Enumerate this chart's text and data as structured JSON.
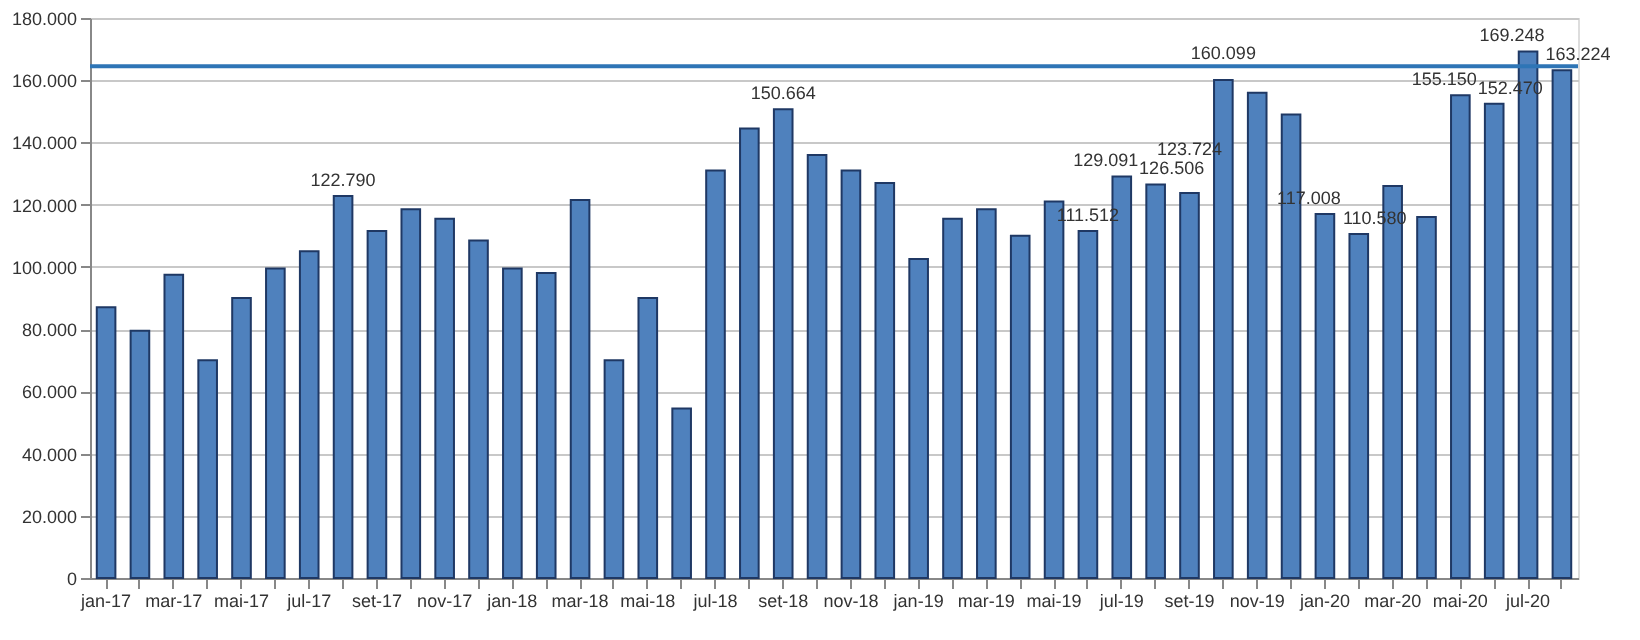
{
  "chart_data": {
    "type": "bar",
    "categories": [
      "jan-17",
      null,
      "mar-17",
      null,
      "mai-17",
      null,
      "jul-17",
      null,
      "set-17",
      null,
      "nov-17",
      null,
      "jan-18",
      null,
      "mar-18",
      null,
      "mai-18",
      null,
      "jul-18",
      null,
      "set-18",
      null,
      "nov-18",
      null,
      "jan-19",
      null,
      "mar-19",
      null,
      "mai-19",
      null,
      "jul-19",
      null,
      "set-19",
      null,
      "nov-19",
      null,
      "jan-20",
      null,
      "mar-20",
      null,
      "mai-20",
      null,
      "jul-20",
      null
    ],
    "values": [
      87000,
      79500,
      97500,
      70000,
      90000,
      99500,
      105000,
      122790,
      111500,
      118500,
      115500,
      108500,
      99500,
      98000,
      121500,
      70000,
      90000,
      54500,
      131000,
      144500,
      150664,
      136000,
      131000,
      127000,
      102500,
      115500,
      118500,
      110000,
      121000,
      111512,
      129091,
      126506,
      123724,
      160099,
      156000,
      149000,
      117008,
      110580,
      126000,
      116000,
      155150,
      152470,
      169248,
      163224
    ],
    "value_labels": [
      null,
      null,
      null,
      null,
      null,
      null,
      null,
      "122.790",
      null,
      null,
      null,
      null,
      null,
      null,
      null,
      null,
      null,
      null,
      null,
      null,
      "150.664",
      null,
      null,
      null,
      null,
      null,
      null,
      null,
      null,
      "111.512",
      "129.091",
      "126.506",
      "123.724",
      "160.099",
      null,
      null,
      "117.008",
      "110.580",
      null,
      null,
      "155.150",
      "152.470",
      "169.248",
      "163.224"
    ],
    "color": "#4f81bd",
    "ylim": [
      0,
      180000
    ],
    "yticks": [
      0,
      {
        "value": 20000,
        "label": "20.000"
      },
      {
        "value": 40000,
        "label": "40.000"
      },
      {
        "value": 60000,
        "label": "60.000"
      },
      {
        "value": 80000,
        "label": "80.000"
      },
      {
        "value": 100000,
        "label": "100.000"
      },
      {
        "value": 120000,
        "label": "120.000"
      },
      {
        "value": 140000,
        "label": "140.000"
      },
      {
        "value": 160000,
        "label": "160.000"
      },
      {
        "value": 180000,
        "label": "180.000"
      }
    ],
    "grid": "y",
    "ref_lines": [
      {
        "axis": "y",
        "value": 164500,
        "color": "#2e75b6"
      }
    ]
  }
}
